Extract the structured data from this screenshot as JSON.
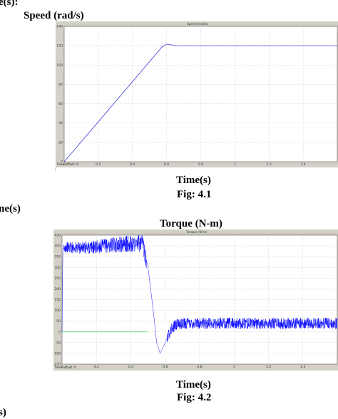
{
  "page": {
    "fragment_top": "e(s):",
    "fragment_mid": "ne(s)",
    "fragment_bottom": "s)"
  },
  "chart_data": [
    {
      "type": "line",
      "title": "Speed (rad/s)",
      "scope_title": "Speed (rad/s)",
      "xlabel": "Time(s)",
      "caption": "Fig: 4.1",
      "time_offset_label": "Time offset:  0",
      "xlim": [
        0,
        1.6
      ],
      "ylim": [
        0,
        140
      ],
      "x_ticks": [
        0,
        0.2,
        0.4,
        0.6,
        0.8,
        1,
        1.2,
        1.4
      ],
      "y_ticks": [
        0,
        20,
        40,
        60,
        80,
        100,
        120,
        140
      ],
      "grid": true,
      "series": [
        {
          "color": "#3b3bd9",
          "x": [
            0,
            0.575,
            0.6,
            0.625,
            0.65,
            1.6
          ],
          "y": [
            0,
            119,
            121.5,
            121,
            120,
            120
          ]
        }
      ]
    },
    {
      "type": "line",
      "title": "Torque (N-m)",
      "scope_title": "Torque (N-m)",
      "xlabel": "Time(s)",
      "caption": "Fig: 4.2",
      "time_offset_label": "Time offset:  0",
      "xlim": [
        0,
        1.6
      ],
      "ylim": [
        -150,
        450
      ],
      "x_ticks": [
        0,
        0.2,
        0.4,
        0.6,
        0.8,
        1,
        1.2,
        1.4
      ],
      "y_ticks": [
        -150,
        -100,
        -50,
        0,
        50,
        100,
        150,
        200,
        250,
        300,
        350,
        400,
        450
      ],
      "grid": true,
      "series": [
        {
          "color": "#0000ff",
          "noise_amplitude": 35,
          "x": [
            0,
            0.005,
            0.012,
            0.02,
            0.1,
            0.2,
            0.3,
            0.4,
            0.47,
            0.5,
            0.53,
            0.55,
            0.57,
            0.6,
            0.63,
            0.66,
            0.7,
            1.6
          ],
          "y": [
            0,
            390,
            380,
            395,
            390,
            395,
            405,
            410,
            410,
            300,
            100,
            -50,
            -100,
            -50,
            10,
            30,
            40,
            40
          ]
        },
        {
          "color": "#33cc55",
          "x": [
            0,
            0.5
          ],
          "y": [
            0,
            0
          ]
        }
      ]
    }
  ]
}
